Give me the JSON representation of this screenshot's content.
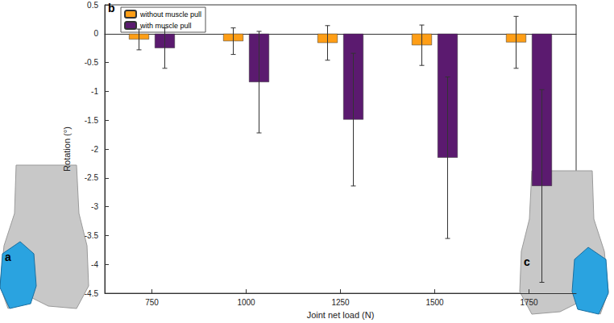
{
  "chart_data": {
    "type": "bar",
    "x_label": "Joint net load (N)",
    "y_label": "Rotation (°)",
    "panel_labels": [
      "a",
      "b",
      "c"
    ],
    "categories": [
      750,
      1000,
      1250,
      1500,
      1750
    ],
    "series": [
      {
        "name": "without muscle pull",
        "color": "#ff9e16",
        "values": [
          -0.1,
          -0.13,
          -0.16,
          -0.2,
          -0.15
        ],
        "errors": [
          0.18,
          0.23,
          0.3,
          0.35,
          0.45
        ]
      },
      {
        "name": "with muscle pull",
        "color": "#5b1a6f",
        "values": [
          -0.25,
          -0.84,
          -1.49,
          -2.15,
          -2.64
        ],
        "errors": [
          0.35,
          0.88,
          1.15,
          1.4,
          1.67
        ]
      }
    ],
    "ylim": [
      -4.5,
      0.5
    ],
    "yticks": [
      -4.5,
      -4,
      -3.5,
      -3,
      -2.5,
      -2,
      -1.5,
      -1,
      -0.5,
      0,
      0.5
    ],
    "grid": false,
    "legend": "upper left"
  }
}
